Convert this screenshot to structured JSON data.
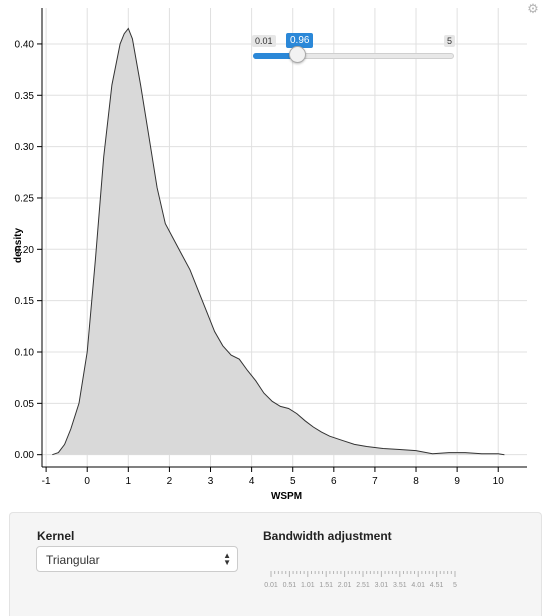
{
  "chart_data": {
    "type": "area",
    "title": "",
    "xlabel": "WSPM",
    "ylabel": "density",
    "xlim": [
      -1.1,
      10.7
    ],
    "ylim": [
      -0.012,
      0.435
    ],
    "x_ticks": [
      -1,
      0,
      1,
      2,
      3,
      4,
      5,
      6,
      7,
      8,
      9,
      10
    ],
    "y_ticks": [
      0.0,
      0.05,
      0.1,
      0.15,
      0.2,
      0.25,
      0.3,
      0.35,
      0.4
    ],
    "y_tick_labels": [
      "0.00",
      "0.05",
      "0.10",
      "0.15",
      "0.20",
      "0.25",
      "0.30",
      "0.35",
      "0.40"
    ],
    "grid": true,
    "fill_color": "#d9d9d9",
    "line_color": "#333333",
    "x": [
      -0.85,
      -0.7,
      -0.55,
      -0.4,
      -0.2,
      0.0,
      0.2,
      0.4,
      0.6,
      0.8,
      0.9,
      1.0,
      1.1,
      1.3,
      1.5,
      1.7,
      1.9,
      2.1,
      2.3,
      2.5,
      2.7,
      2.9,
      3.1,
      3.3,
      3.5,
      3.7,
      3.9,
      4.1,
      4.3,
      4.5,
      4.7,
      4.9,
      5.1,
      5.3,
      5.5,
      5.7,
      5.9,
      6.2,
      6.5,
      6.8,
      7.2,
      7.6,
      8.0,
      8.4,
      8.8,
      9.2,
      9.6,
      10.0,
      10.15
    ],
    "y": [
      0.0,
      0.002,
      0.01,
      0.025,
      0.05,
      0.1,
      0.19,
      0.29,
      0.36,
      0.4,
      0.41,
      0.415,
      0.405,
      0.36,
      0.31,
      0.26,
      0.225,
      0.21,
      0.195,
      0.18,
      0.16,
      0.14,
      0.12,
      0.106,
      0.097,
      0.093,
      0.082,
      0.072,
      0.06,
      0.052,
      0.047,
      0.045,
      0.04,
      0.033,
      0.027,
      0.022,
      0.018,
      0.014,
      0.01,
      0.008,
      0.006,
      0.005,
      0.004,
      0.001,
      0.002,
      0.002,
      0.001,
      0.001,
      0.0
    ]
  },
  "settings_icon": "gear-icon",
  "controls": {
    "kernel": {
      "label": "Kernel",
      "selected": "Triangular"
    },
    "bandwidth": {
      "label": "Bandwidth adjustment",
      "min": 0.01,
      "max": 5,
      "value": 0.96,
      "min_label": "0.01",
      "max_label": "5",
      "value_label": "0.96",
      "tick_labels": [
        "0.01",
        "0.51",
        "1.01",
        "1.51",
        "2.01",
        "2.51",
        "3.01",
        "3.51",
        "4.01",
        "4.51",
        "5"
      ],
      "accent_color": "#2b88d8"
    }
  }
}
